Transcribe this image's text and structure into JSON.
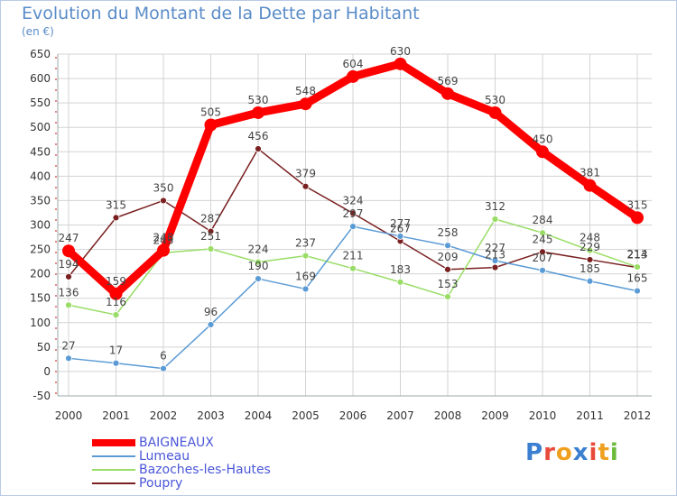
{
  "title": "Evolution du Montant de la Dette par Habitant",
  "subtitle": "(en €)",
  "logo_text": "Proxiti",
  "colors": {
    "frame": "#b9c9e6",
    "grid": "#d3d3d3",
    "title": "#5a8cc8",
    "legend_text": "#4a56d8",
    "axis_dashes": "#e06060"
  },
  "chart_data": {
    "type": "line",
    "title": "Evolution du Montant de la Dette par Habitant",
    "subtitle": "(en €)",
    "xlabel": "",
    "ylabel": "",
    "x": [
      "2000",
      "2001",
      "2002",
      "2003",
      "2004",
      "2005",
      "2006",
      "2007",
      "2008",
      "2009",
      "2010",
      "2011",
      "2012"
    ],
    "ylim": [
      -50,
      650
    ],
    "yticks": [
      -50,
      0,
      50,
      100,
      150,
      200,
      250,
      300,
      350,
      400,
      450,
      500,
      550,
      600,
      650
    ],
    "grid": true,
    "legend_position": "bottom-left",
    "series": [
      {
        "name": "BAIGNEAUX",
        "color": "#ff0000",
        "values": [
          247,
          159,
          248,
          505,
          530,
          548,
          604,
          630,
          569,
          530,
          450,
          381,
          315
        ],
        "labels": [
          "247",
          "159",
          "248",
          "505",
          "530",
          "548",
          "604",
          "630",
          "569",
          "530",
          "450",
          "381",
          "315"
        ]
      },
      {
        "name": "Lumeau",
        "color": "#5b9bd5",
        "values": [
          27,
          17,
          6,
          96,
          190,
          169,
          297,
          277,
          258,
          227,
          207,
          185,
          165
        ],
        "labels": [
          "27",
          "17",
          "6",
          "96",
          "190",
          "169",
          "297",
          "277",
          "258",
          "227",
          "207",
          "185",
          "165"
        ]
      },
      {
        "name": "Bazoches-les-Hautes",
        "color": "#99dd66",
        "values": [
          136,
          116,
          243,
          251,
          224,
          237,
          211,
          183,
          153,
          312,
          284,
          248,
          214
        ],
        "labels": [
          "136",
          "116",
          "243",
          "251",
          "224",
          "237",
          "211",
          "183",
          "153",
          "312",
          "284",
          "248",
          "214"
        ]
      },
      {
        "name": "Poupry",
        "color": "#7a2020",
        "values": [
          194,
          315,
          350,
          287,
          456,
          379,
          324,
          267,
          209,
          213,
          245,
          229,
          213
        ],
        "labels": [
          "194",
          "315",
          "350",
          "287",
          "456",
          "379",
          "324",
          "267",
          "209",
          "213",
          "245",
          "229",
          "213"
        ]
      }
    ]
  }
}
